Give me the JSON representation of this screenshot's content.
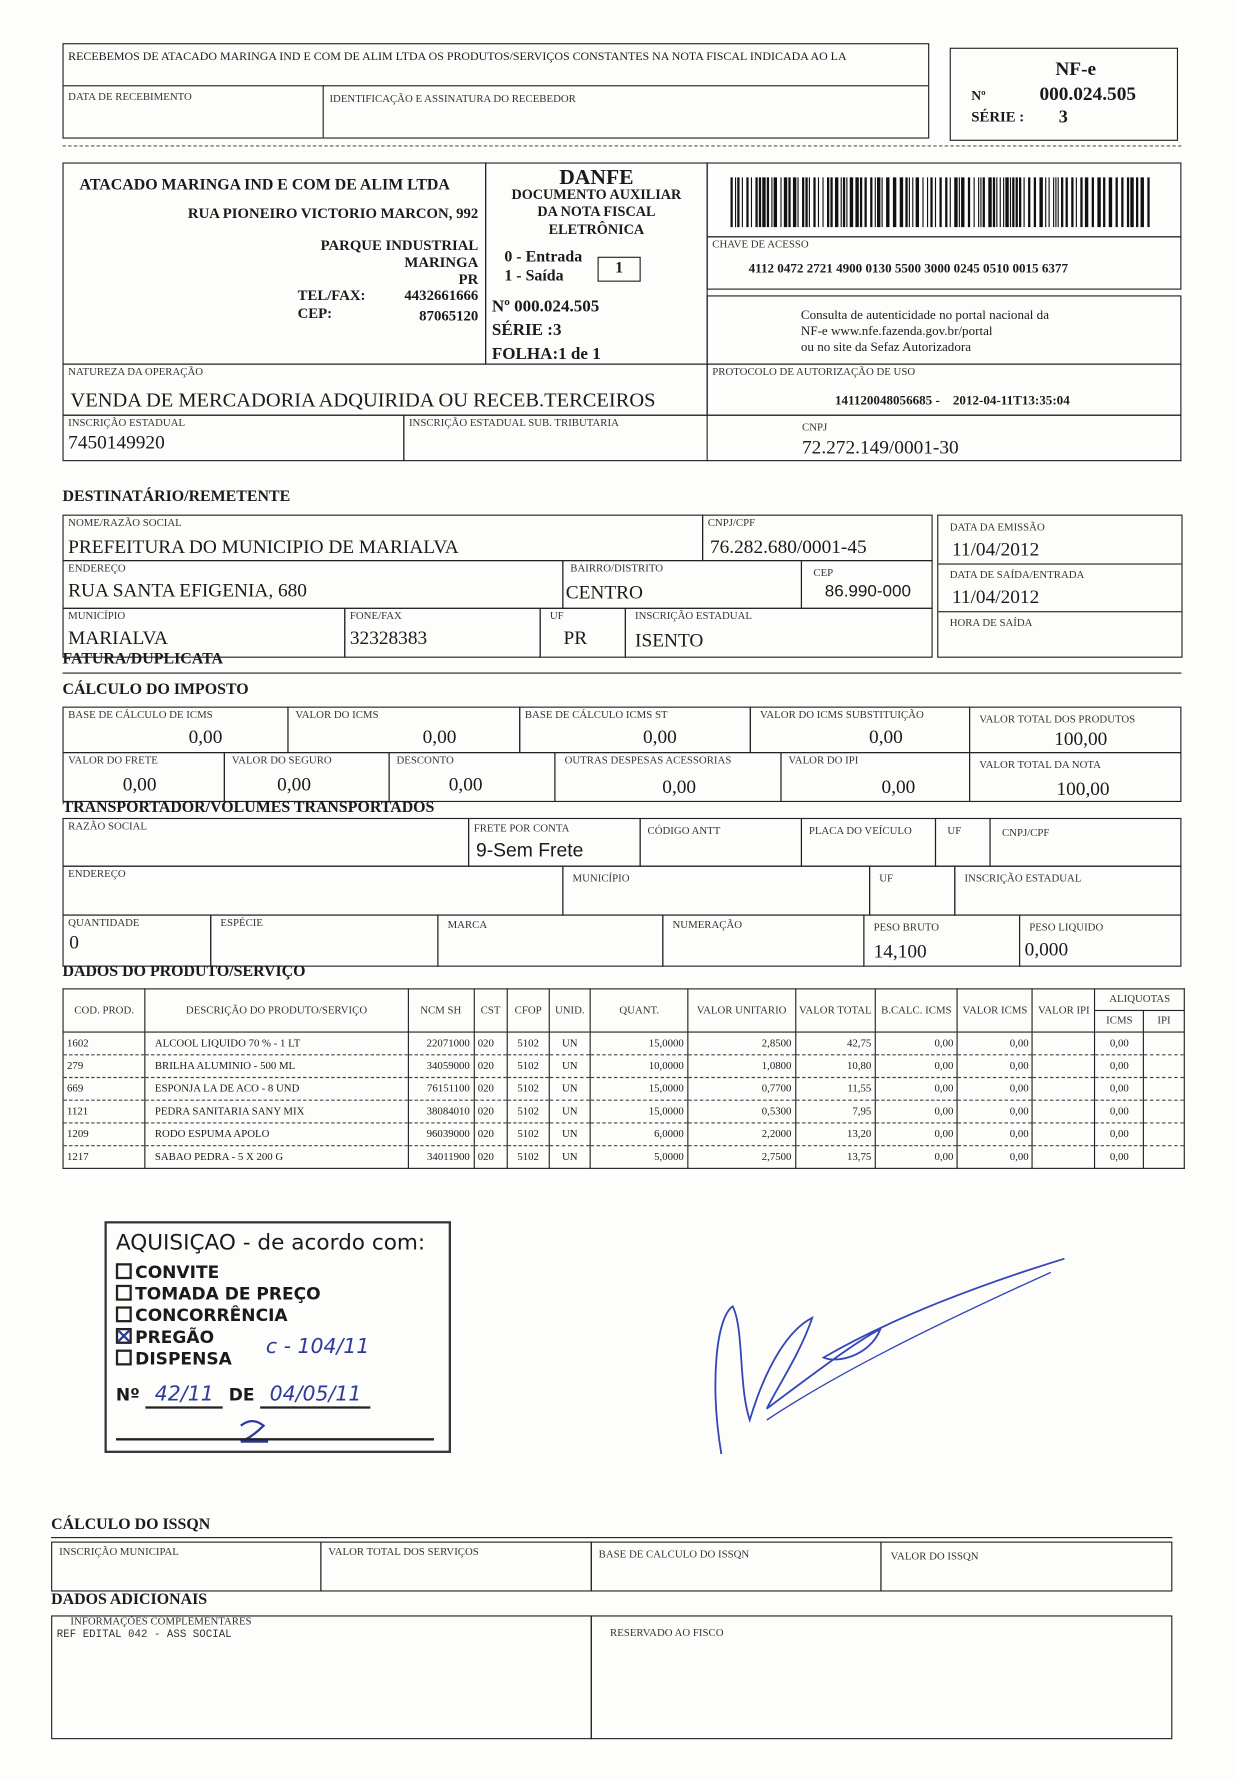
{
  "receipt": {
    "text": "RECEBEMOS DE ATACADO MARINGA IND E COM DE ALIM LTDA OS PRODUTOS/SERVIÇOS CONSTANTES NA NOTA FISCAL INDICADA AO LA",
    "date_label": "DATA DE RECEBIMENTO",
    "signature_label": "IDENTIFICAÇÃO E ASSINATURA DO RECEBEDOR"
  },
  "nfe_box": {
    "title": "NF-e",
    "number_label": "Nº",
    "number": "000.024.505",
    "series_label": "SÉRIE :",
    "series": "3"
  },
  "emitter": {
    "name": "ATACADO MARINGA IND E COM DE ALIM LTDA",
    "address": "RUA PIONEIRO VICTORIO MARCON, 992",
    "district": "PARQUE INDUSTRIAL",
    "city": "MARINGA",
    "state": "PR",
    "phone_label": "TEL/FAX:",
    "phone": "4432661666",
    "cep_label": "CEP:",
    "cep": "87065120"
  },
  "danfe": {
    "title": "DANFE",
    "subtitle1": "DOCUMENTO AUXILIAR",
    "subtitle2": "DA NOTA FISCAL",
    "subtitle3": "ELETRÔNICA",
    "entry": "0 - Entrada",
    "exit": "1 - Saída",
    "type_value": "1",
    "number": "Nº 000.024.505",
    "series": "SÉRIE :3",
    "sheet": "FOLHA:1 de 1"
  },
  "access_key": {
    "label": "CHAVE DE ACESSO",
    "value": "4112 0472 2721 4900 0130 5500 3000 0245 0510 0015 6377"
  },
  "consult": {
    "line1": "Consulta de autenticidade no portal  nacional da",
    "line2": "NF-e www.nfe.fazenda.gov.br/portal",
    "line3": "ou no site da Sefaz Autorizadora"
  },
  "operation": {
    "label": "NATUREZA DA OPERAÇÃO",
    "value": "VENDA DE MERCADORIA ADQUIRIDA OU RECEB.TERCEIROS"
  },
  "protocol": {
    "label": "PROTOCOLO DE AUTORIZAÇÃO DE USO",
    "value": "141120048056685 -    2012-04-11T13:35:04"
  },
  "state_reg": {
    "label": "INSCRIÇÃO ESTADUAL",
    "value": "7450149920",
    "st_label": "INSCRIÇÃO ESTADUAL SUB. TRIBUTARIA",
    "cnpj_label": "CNPJ",
    "cnpj": "72.272.149/0001-30"
  },
  "recipient": {
    "heading": "DESTINATÁRIO/REMETENTE",
    "name_label": "NOME/RAZÃO SOCIAL",
    "name": "PREFEITURA DO MUNICIPIO DE MARIALVA",
    "cnpj_label": "CNPJ/CPF",
    "cnpj": "76.282.680/0001-45",
    "issue_label": "DATA DA EMISSÃO",
    "issue": "11/04/2012",
    "address_label": "ENDEREÇO",
    "address": "RUA SANTA EFIGENIA, 680",
    "district_label": "BAIRRO/DISTRITO",
    "district": "CENTRO",
    "cep_label": "CEP",
    "cep": "86.990-000",
    "exit_date_label": "DATA DE SAÍDA/ENTRADA",
    "exit_date": "11/04/2012",
    "city_label": "MUNICÍPIO",
    "city": "MARIALVA",
    "phone_label": "FONE/FAX",
    "phone": "32328383",
    "uf_label": "UF",
    "uf": "PR",
    "ie_label": "INSCRIÇÃO ESTADUAL",
    "ie": "ISENTO",
    "exit_time_label": "HORA DE SAÍDA"
  },
  "invoice": {
    "heading": "FATURA/DUPLICATA"
  },
  "tax": {
    "heading": "CÁLCULO DO IMPOSTO",
    "base_icms_label": "BASE DE CÁLCULO DE ICMS",
    "base_icms": "0,00",
    "icms_label": "VALOR DO ICMS",
    "icms": "0,00",
    "base_st_label": "BASE DE CÁLCULO ICMS ST",
    "base_st": "0,00",
    "icms_st_label": "VALOR DO ICMS SUBSTITUIÇÃO",
    "icms_st": "0,00",
    "products_total_label": "VALOR TOTAL DOS PRODUTOS",
    "products_total": "100,00",
    "freight_label": "VALOR DO FRETE",
    "freight": "0,00",
    "insurance_label": "VALOR DO SEGURO",
    "insurance": "0,00",
    "discount_label": "DESCONTO",
    "discount": "0,00",
    "other_label": "OUTRAS DESPESAS ACESSORIAS",
    "other": "0,00",
    "ipi_label": "VALOR DO IPI",
    "ipi": "0,00",
    "invoice_total_label": "VALOR TOTAL DA NOTA",
    "invoice_total": "100,00"
  },
  "transport": {
    "heading": "TRANSPORTADOR/VOLUMES TRANSPORTADOS",
    "name_label": "RAZÃO SOCIAL",
    "freight_label": "FRETE POR CONTA",
    "freight": "9-Sem Frete",
    "antt_label": "CÓDIGO ANTT",
    "plate_label": "PLACA DO VEÍCULO",
    "uf_label": "UF",
    "cnpj_label": "CNPJ/CPF",
    "address_label": "ENDEREÇO",
    "city_label": "MUNICÍPIO",
    "uf2_label": "UF",
    "ie_label": "INSCRIÇÃO ESTADUAL",
    "qty_label": "QUANTIDADE",
    "qty": "0",
    "species_label": "ESPÉCIE",
    "brand_label": "MARCA",
    "numbering_label": "NUMERAÇÃO",
    "gross_label": "PESO BRUTO",
    "gross": "14,100",
    "net_label": "PESO LIQUIDO",
    "net": "0,000"
  },
  "products": {
    "heading": "DADOS DO PRODUTO/SERVIÇO",
    "columns": {
      "code": "COD. PROD.",
      "desc": "DESCRIÇÃO DO PRODUTO/SERVIÇO",
      "ncm": "NCM SH",
      "cst": "CST",
      "cfop": "CFOP",
      "unit": "UNID.",
      "qty": "QUANT.",
      "unit_price": "VALOR UNITARIO",
      "total": "VALOR TOTAL",
      "bcalc": "B.CALC. ICMS",
      "icms": "VALOR ICMS",
      "ipi": "VALOR IPI",
      "rates": "ALIQUOTAS",
      "rate_icms": "ICMS",
      "rate_ipi": "IPI"
    },
    "rows": [
      {
        "code": "1602",
        "desc": "ALCOOL LIQUIDO 70 % - 1 LT",
        "ncm": "22071000",
        "cst": "020",
        "cfop": "5102",
        "unit": "UN",
        "qty": "15,0000",
        "unit_price": "2,8500",
        "total": "42,75",
        "bcalc": "0,00",
        "icms": "0,00",
        "ipi": "",
        "rate_icms": "0,00",
        "rate_ipi": ""
      },
      {
        "code": "279",
        "desc": "BRILHA ALUMINIO - 500 ML",
        "ncm": "34059000",
        "cst": "020",
        "cfop": "5102",
        "unit": "UN",
        "qty": "10,0000",
        "unit_price": "1,0800",
        "total": "10,80",
        "bcalc": "0,00",
        "icms": "0,00",
        "ipi": "",
        "rate_icms": "0,00",
        "rate_ipi": ""
      },
      {
        "code": "669",
        "desc": "ESPONJA LA DE ACO - 8 UND",
        "ncm": "76151100",
        "cst": "020",
        "cfop": "5102",
        "unit": "UN",
        "qty": "15,0000",
        "unit_price": "0,7700",
        "total": "11,55",
        "bcalc": "0,00",
        "icms": "0,00",
        "ipi": "",
        "rate_icms": "0,00",
        "rate_ipi": ""
      },
      {
        "code": "1121",
        "desc": "PEDRA SANITARIA SANY MIX",
        "ncm": "38084010",
        "cst": "020",
        "cfop": "5102",
        "unit": "UN",
        "qty": "15,0000",
        "unit_price": "0,5300",
        "total": "7,95",
        "bcalc": "0,00",
        "icms": "0,00",
        "ipi": "",
        "rate_icms": "0,00",
        "rate_ipi": ""
      },
      {
        "code": "1209",
        "desc": "RODO ESPUMA APOLO",
        "ncm": "96039000",
        "cst": "020",
        "cfop": "5102",
        "unit": "UN",
        "qty": "6,0000",
        "unit_price": "2,2000",
        "total": "13,20",
        "bcalc": "0,00",
        "icms": "0,00",
        "ipi": "",
        "rate_icms": "0,00",
        "rate_ipi": ""
      },
      {
        "code": "1217",
        "desc": "SABAO PEDRA - 5 X 200 G",
        "ncm": "34011900",
        "cst": "020",
        "cfop": "5102",
        "unit": "UN",
        "qty": "5,0000",
        "unit_price": "2,7500",
        "total": "13,75",
        "bcalc": "0,00",
        "icms": "0,00",
        "ipi": "",
        "rate_icms": "0,00",
        "rate_ipi": ""
      }
    ]
  },
  "stamp": {
    "title": "AQUISIÇAO - de acordo com:",
    "options": [
      {
        "label": "CONVITE",
        "checked": false
      },
      {
        "label": "TOMADA DE PREÇO",
        "checked": false
      },
      {
        "label": "CONCORRÊNCIA",
        "checked": false
      },
      {
        "label": "PREGÃO",
        "checked": true
      },
      {
        "label": "DISPENSA",
        "checked": false
      }
    ],
    "handwritten_ref": "c - 104/11",
    "number_label": "Nº",
    "number": "42/11",
    "date_label": "DE",
    "date": "04/05/11"
  },
  "issqn": {
    "heading": "CÁLCULO DO ISSQN",
    "municipal_label": "INSCRIÇÃO MUNICIPAL",
    "services_label": "VALOR TOTAL DOS SERVIÇOS",
    "base_label": "BASE DE CALCULO DO ISSQN",
    "value_label": "VALOR DO ISSQN"
  },
  "additional": {
    "heading": "DADOS ADICIONAIS",
    "info_label": "INFORMAÇÕES COMPLEMENTARES",
    "info": "REF EDITAL 042 - ASS SOCIAL",
    "reserved_label": "RESERVADO AO FISCO"
  }
}
